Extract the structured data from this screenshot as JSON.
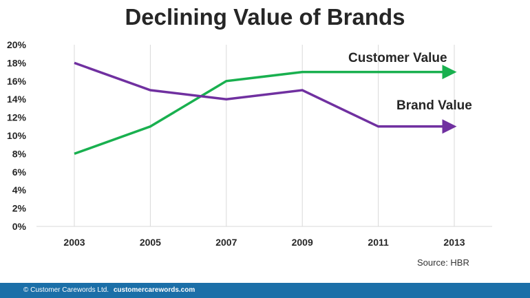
{
  "slide": {
    "source": "Source: HBR",
    "footer": {
      "copyright": "© Customer Carewords  Ltd.",
      "site": "customercarewords.com"
    }
  },
  "chart_data": {
    "type": "line",
    "title": "Declining Value of Brands",
    "x": [
      "2003",
      "2005",
      "2007",
      "2009",
      "2011",
      "2013"
    ],
    "ylim": [
      0,
      20
    ],
    "yticks": [
      "0%",
      "2%",
      "4%",
      "6%",
      "8%",
      "10%",
      "12%",
      "14%",
      "16%",
      "18%",
      "20%"
    ],
    "grid": "vertical",
    "legend": "none",
    "series": [
      {
        "name": "Customer Value",
        "values": [
          8,
          11,
          16,
          17,
          17,
          17
        ],
        "color": "#19b04f"
      },
      {
        "name": "Brand Value",
        "values": [
          18,
          15,
          14,
          15,
          11,
          11
        ],
        "color": "#7030a0"
      }
    ]
  }
}
